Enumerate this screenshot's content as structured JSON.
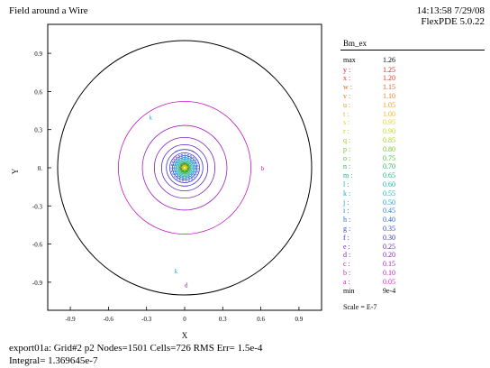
{
  "header": {
    "title": "Field around a Wire",
    "timestamp": "14:13:58 7/29/08",
    "version": "FlexPDE 5.0.22"
  },
  "legend": {
    "title": "Bm_ex",
    "max_label": "max",
    "max_value": "1.26",
    "min_label": "min",
    "min_value": "9e-4",
    "scale": "Scale = E-7",
    "levels": [
      {
        "label": "y :",
        "value": "1.25",
        "color": "#e8191e"
      },
      {
        "label": "x :",
        "value": "1.20",
        "color": "#e8361c"
      },
      {
        "label": "w :",
        "value": "1.15",
        "color": "#ea5a1d"
      },
      {
        "label": "v :",
        "value": "1.10",
        "color": "#ee7a1f"
      },
      {
        "label": "u :",
        "value": "1.05",
        "color": "#f19a1f"
      },
      {
        "label": "t :",
        "value": "1.00",
        "color": "#f3b81f"
      },
      {
        "label": "s :",
        "value": "0.95",
        "color": "#e3d21a"
      },
      {
        "label": "r :",
        "value": "0.90",
        "color": "#c2d91a"
      },
      {
        "label": "q :",
        "value": "0.85",
        "color": "#9ad01c"
      },
      {
        "label": "p :",
        "value": "0.80",
        "color": "#6ec723"
      },
      {
        "label": "o :",
        "value": "0.75",
        "color": "#3fbe2f"
      },
      {
        "label": "n :",
        "value": "0.70",
        "color": "#1fb45a"
      },
      {
        "label": "m :",
        "value": "0.65",
        "color": "#18b288"
      },
      {
        "label": "l :",
        "value": "0.60",
        "color": "#15b3ab"
      },
      {
        "label": "k :",
        "value": "0.55",
        "color": "#16adc8"
      },
      {
        "label": "j :",
        "value": "0.50",
        "color": "#1a98d6"
      },
      {
        "label": "i :",
        "value": "0.45",
        "color": "#1e7fd8"
      },
      {
        "label": "h :",
        "value": "0.40",
        "color": "#2263d6"
      },
      {
        "label": "g :",
        "value": "0.35",
        "color": "#2948d2"
      },
      {
        "label": "f :",
        "value": "0.30",
        "color": "#3632c9"
      },
      {
        "label": "e :",
        "value": "0.25",
        "color": "#5a27c4"
      },
      {
        "label": "d :",
        "value": "0.20",
        "color": "#7d22c0"
      },
      {
        "label": "c :",
        "value": "0.15",
        "color": "#a01ebd"
      },
      {
        "label": "b :",
        "value": "0.10",
        "color": "#c11cc0"
      },
      {
        "label": "a :",
        "value": "0.05",
        "color": "#e01dc6"
      }
    ]
  },
  "footer": {
    "line1": "export01a:  Grid#2  p2  Nodes=1501  Cells=726  RMS Err= 1.5e-4",
    "line2": "Integral=  1.369645e-7"
  },
  "chart_data": {
    "type": "contour",
    "xlabel": "X",
    "ylabel": "Y",
    "xlim": [
      -1.1,
      1.1
    ],
    "ylim": [
      -1.1,
      1.1
    ],
    "xticks": [
      -0.9,
      -0.6,
      -0.3,
      0,
      0.3,
      0.6,
      0.9
    ],
    "yticks": [
      0.9,
      0.6,
      0.3,
      0,
      -0.3,
      -0.6,
      -0.9
    ],
    "xtick_labels": [
      "-0.9",
      "-0.6",
      "-0.3",
      "0",
      "0.3",
      "0.6",
      "0.9"
    ],
    "ytick_labels": [
      "0.9",
      "0.6",
      "0.3",
      "0.",
      "-0.3",
      "-0.6",
      "-0.9"
    ],
    "boundary_radius": 1.0,
    "field_decay_scale": 0.045,
    "field_max": 1.26,
    "min": 0.0009,
    "level_step": 0.05,
    "contour_labels": [
      {
        "text": "k",
        "x": -0.28,
        "y": 0.4,
        "color": "#16adc8"
      },
      {
        "text": "b",
        "x": 0.6,
        "y": 0.0,
        "color": "#c11cc0"
      },
      {
        "text": "k",
        "x": -0.08,
        "y": -0.81,
        "color": "#16adc8"
      },
      {
        "text": "d",
        "x": 0.0,
        "y": -0.92,
        "color": "#7d22c0"
      }
    ]
  }
}
